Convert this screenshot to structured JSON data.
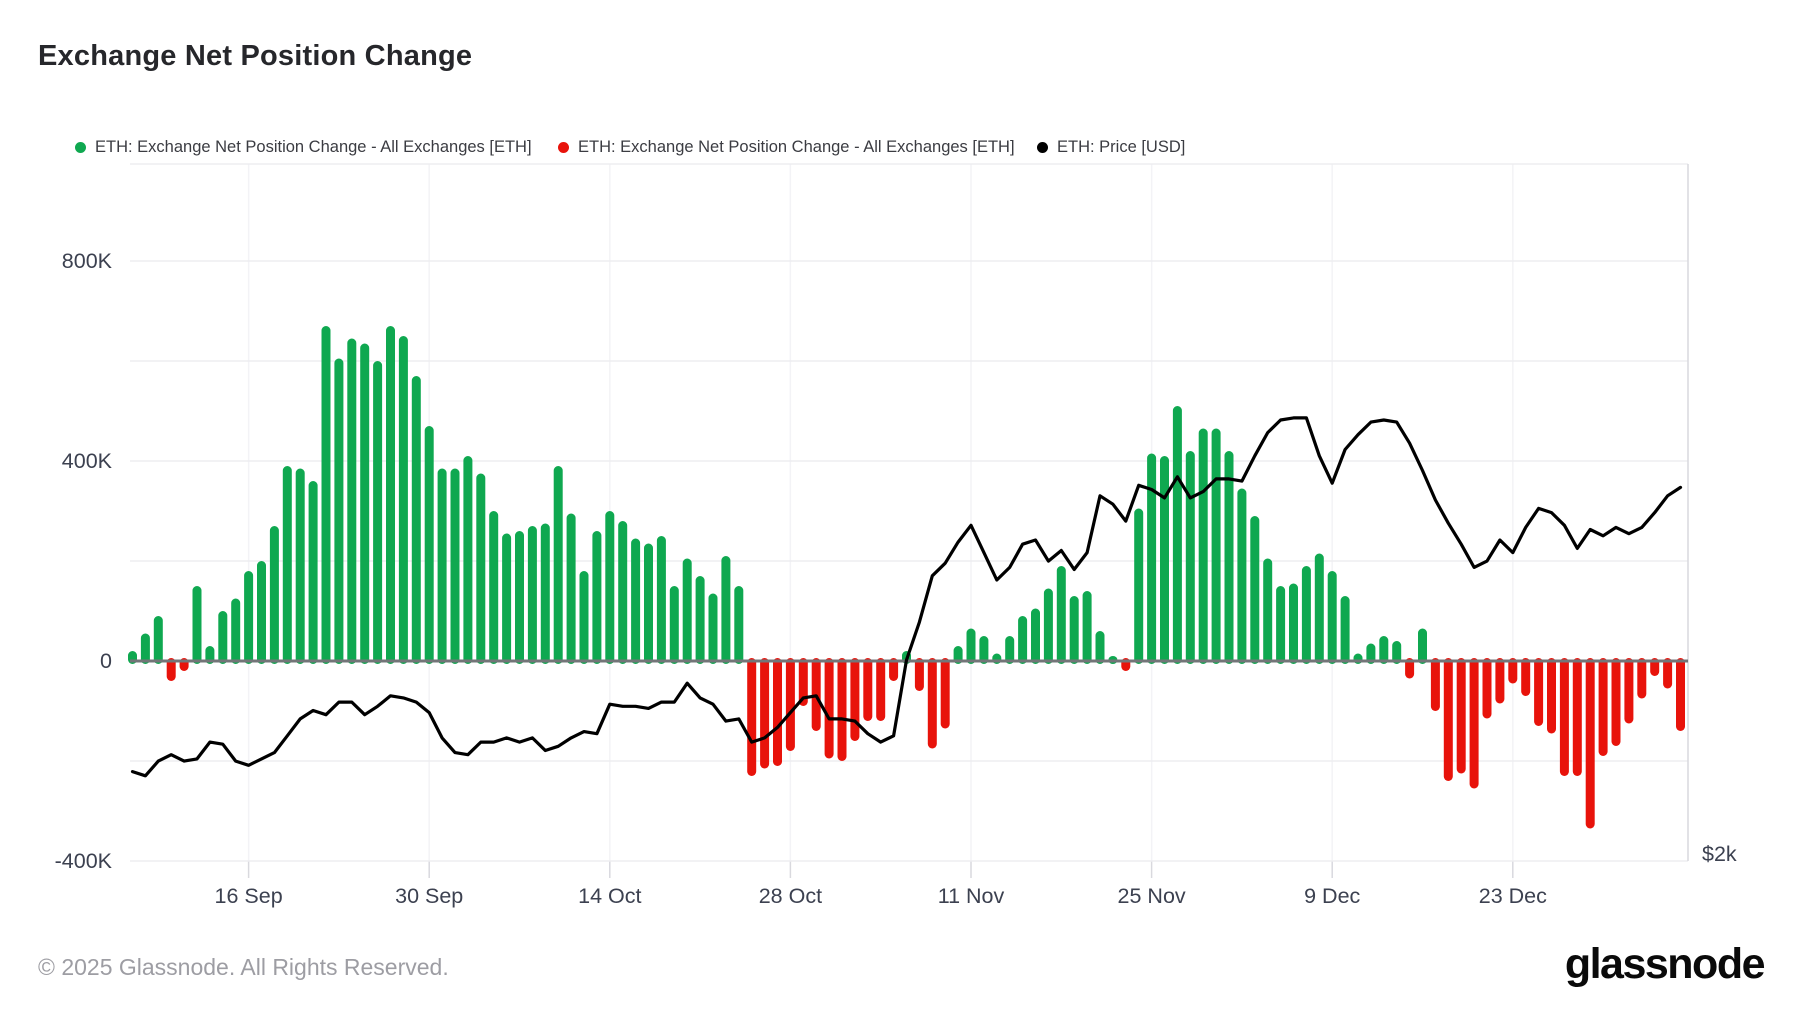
{
  "title": "Exchange Net Position Change",
  "legend": [
    {
      "label": "ETH: Exchange Net Position Change - All Exchanges [ETH]",
      "color": "#0FA850"
    },
    {
      "label": "ETH: Exchange Net Position Change - All Exchanges [ETH]",
      "color": "#E8130B"
    },
    {
      "label": "ETH: Price [USD]",
      "color": "#000000"
    }
  ],
  "footer": {
    "copyright": "© 2025 Glassnode. All Rights Reserved.",
    "brand": "glassnode"
  },
  "chart_data": {
    "type": "bar+line",
    "title": "Exchange Net Position Change",
    "x_axis": {
      "interval": "daily",
      "start": "7 Sep",
      "end": "5 Jan",
      "tick_labels": [
        "16 Sep",
        "30 Sep",
        "14 Oct",
        "28 Oct",
        "11 Nov",
        "25 Nov",
        "9 Dec",
        "23 Dec"
      ],
      "tick_day_indices": [
        9,
        23,
        37,
        51,
        65,
        79,
        93,
        107
      ]
    },
    "y_axis_left": {
      "tick_labels": [
        "800K",
        "400K",
        "0",
        "-400K"
      ],
      "tick_values_thousands": [
        800,
        400,
        0,
        -400
      ],
      "gridline_step_thousands": 200,
      "visible_range_thousands": [
        -400,
        990
      ]
    },
    "y_axis_right": {
      "bottom_label": "$2k",
      "bottom_value_usd": 2000
    },
    "grid": true,
    "legend_position": "top",
    "series": [
      {
        "name": "ETH: Exchange Net Position Change - All Exchanges [ETH]",
        "type": "bar",
        "unit": "thousand ETH",
        "positive_color": "#0FA850",
        "negative_color": "#E8130B",
        "values": [
          20,
          55,
          90,
          -40,
          -20,
          150,
          30,
          100,
          125,
          180,
          200,
          270,
          390,
          385,
          360,
          670,
          605,
          645,
          635,
          600,
          670,
          650,
          570,
          470,
          385,
          385,
          410,
          375,
          300,
          255,
          260,
          270,
          275,
          390,
          295,
          180,
          260,
          300,
          280,
          245,
          235,
          250,
          150,
          205,
          170,
          135,
          210,
          150,
          -230,
          -215,
          -210,
          -180,
          -90,
          -140,
          -195,
          -200,
          -160,
          -120,
          -120,
          -40,
          20,
          -60,
          -175,
          -135,
          30,
          65,
          50,
          15,
          50,
          90,
          105,
          145,
          190,
          130,
          140,
          60,
          10,
          -20,
          305,
          415,
          410,
          510,
          420,
          465,
          465,
          420,
          345,
          290,
          205,
          150,
          155,
          190,
          215,
          180,
          130,
          15,
          35,
          50,
          40,
          -35,
          65,
          -100,
          -240,
          -225,
          -255,
          -115,
          -85,
          -45,
          -70,
          -130,
          -145,
          -230,
          -230,
          -335,
          -190,
          -170,
          -125,
          -75,
          -30,
          -55,
          -140
        ]
      },
      {
        "name": "ETH: Price [USD]",
        "type": "line",
        "unit": "USD",
        "color": "#000000",
        "values": [
          2420,
          2400,
          2470,
          2500,
          2470,
          2480,
          2560,
          2550,
          2470,
          2450,
          2480,
          2510,
          2590,
          2670,
          2710,
          2690,
          2750,
          2750,
          2690,
          2730,
          2780,
          2770,
          2750,
          2700,
          2580,
          2510,
          2500,
          2560,
          2560,
          2580,
          2560,
          2580,
          2520,
          2540,
          2580,
          2610,
          2600,
          2740,
          2730,
          2730,
          2720,
          2750,
          2750,
          2840,
          2770,
          2740,
          2660,
          2670,
          2560,
          2580,
          2630,
          2700,
          2770,
          2780,
          2670,
          2670,
          2660,
          2600,
          2560,
          2590,
          2950,
          3130,
          3350,
          3410,
          3510,
          3590,
          3460,
          3330,
          3390,
          3500,
          3520,
          3420,
          3470,
          3380,
          3460,
          3730,
          3690,
          3610,
          3780,
          3760,
          3720,
          3820,
          3720,
          3750,
          3810,
          3810,
          3800,
          3920,
          4030,
          4090,
          4100,
          4100,
          3920,
          3790,
          3950,
          4020,
          4080,
          4090,
          4080,
          3980,
          3850,
          3710,
          3600,
          3500,
          3390,
          3420,
          3520,
          3460,
          3580,
          3670,
          3650,
          3590,
          3480,
          3570,
          3540,
          3580,
          3550,
          3580,
          3650,
          3730,
          3770
        ]
      }
    ]
  }
}
